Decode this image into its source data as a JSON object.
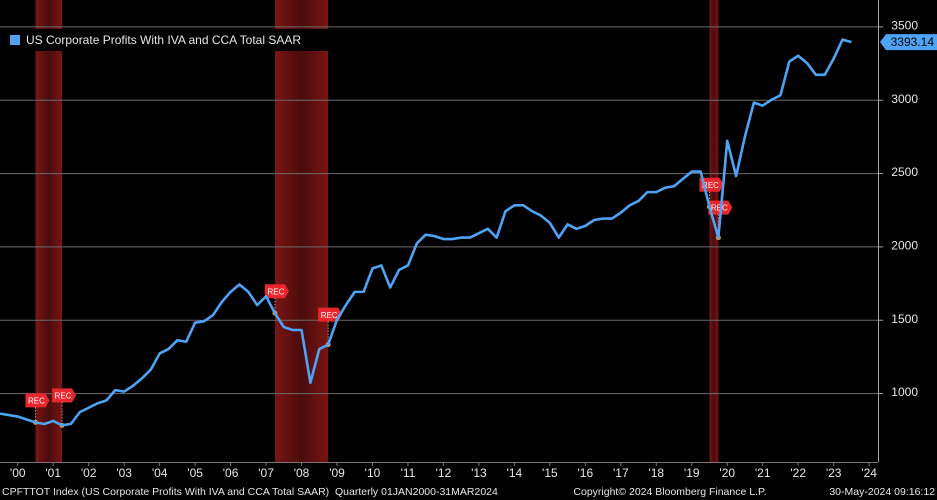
{
  "chart_data": {
    "type": "line",
    "series": [
      {
        "name": "US Corporate Profits With IVA and CCA Total SAAR",
        "color": "#4da3f5",
        "last_label": "3393.14",
        "values": [
          860,
          850,
          840,
          820,
          800,
          789,
          810,
          780,
          790,
          870,
          900,
          930,
          950,
          1020,
          1010,
          1050,
          1100,
          1160,
          1270,
          1300,
          1360,
          1350,
          1480,
          1490,
          1530,
          1620,
          1690,
          1740,
          1690,
          1600,
          1660,
          1544,
          1450,
          1430,
          1430,
          1070,
          1300,
          1330,
          1500,
          1600,
          1690,
          1690,
          1850,
          1870,
          1720,
          1840,
          1870,
          2020,
          2080,
          2070,
          2050,
          2050,
          2060,
          2060,
          2090,
          2120,
          2060,
          2240,
          2280,
          2280,
          2240,
          2210,
          2160,
          2060,
          2150,
          2120,
          2140,
          2180,
          2190,
          2190,
          2230,
          2280,
          2310,
          2370,
          2370,
          2400,
          2410,
          2460,
          2510,
          2510,
          2270,
          2060,
          2720,
          2480,
          2750,
          2980,
          2960,
          3000,
          3030,
          3260,
          3300,
          3250,
          3170,
          3170,
          3280,
          3410,
          3393.14
        ]
      }
    ],
    "x": [
      2000,
      2000.25,
      2000.5,
      2000.75,
      2001,
      2001.25,
      2001.5,
      2001.75,
      2002,
      2002.25,
      2002.5,
      2002.75,
      2003,
      2003.25,
      2003.5,
      2003.75,
      2004,
      2004.25,
      2004.5,
      2004.75,
      2005,
      2005.25,
      2005.5,
      2005.75,
      2006,
      2006.25,
      2006.5,
      2006.75,
      2007,
      2007.25,
      2007.5,
      2007.75,
      2008,
      2008.25,
      2008.5,
      2008.75,
      2009,
      2009.25,
      2009.5,
      2009.75,
      2010,
      2010.25,
      2010.5,
      2010.75,
      2011,
      2011.25,
      2011.5,
      2011.75,
      2012,
      2012.25,
      2012.5,
      2012.75,
      2013,
      2013.25,
      2013.5,
      2013.75,
      2014,
      2014.25,
      2014.5,
      2014.75,
      2015,
      2015.25,
      2015.5,
      2015.75,
      2016,
      2016.25,
      2016.5,
      2016.75,
      2017,
      2017.25,
      2017.5,
      2017.75,
      2018,
      2018.25,
      2018.5,
      2018.75,
      2019,
      2019.25,
      2019.5,
      2019.75,
      2020,
      2020.25,
      2020.5,
      2020.75,
      2021,
      2021.25,
      2021.5,
      2021.75,
      2022,
      2022.25,
      2022.5,
      2022.75,
      2023,
      2023.25,
      2023.5,
      2023.75,
      2024
    ],
    "xlim": [
      2000,
      2024.75
    ],
    "xticks": [
      {
        "value": 2000.5,
        "label": "'00"
      },
      {
        "value": 2001.5,
        "label": "'01"
      },
      {
        "value": 2002.5,
        "label": "'02"
      },
      {
        "value": 2003.5,
        "label": "'03"
      },
      {
        "value": 2004.5,
        "label": "'04"
      },
      {
        "value": 2005.5,
        "label": "'05"
      },
      {
        "value": 2006.5,
        "label": "'06"
      },
      {
        "value": 2007.5,
        "label": "'07"
      },
      {
        "value": 2008.5,
        "label": "'08"
      },
      {
        "value": 2009.5,
        "label": "'09"
      },
      {
        "value": 2010.5,
        "label": "'10"
      },
      {
        "value": 2011.5,
        "label": "'11"
      },
      {
        "value": 2012.5,
        "label": "'12"
      },
      {
        "value": 2013.5,
        "label": "'13"
      },
      {
        "value": 2014.5,
        "label": "'14"
      },
      {
        "value": 2015.5,
        "label": "'15"
      },
      {
        "value": 2016.5,
        "label": "'16"
      },
      {
        "value": 2017.5,
        "label": "'17"
      },
      {
        "value": 2018.5,
        "label": "'18"
      },
      {
        "value": 2019.5,
        "label": "'19"
      },
      {
        "value": 2020.5,
        "label": "'20"
      },
      {
        "value": 2021.5,
        "label": "'21"
      },
      {
        "value": 2022.5,
        "label": "'22"
      },
      {
        "value": 2023.5,
        "label": "'23"
      },
      {
        "value": 2024.5,
        "label": "'24"
      }
    ],
    "ylim": [
      530,
      3680
    ],
    "yticks": [
      1000,
      1500,
      2000,
      2500,
      3000,
      3500
    ],
    "grid": true,
    "legend": "top-left",
    "recessions": [
      {
        "start": 2001,
        "end": 2001.75,
        "start_label": "REC",
        "end_label": "REC"
      },
      {
        "start": 2007.75,
        "end": 2009.25,
        "start_label": "REC",
        "end_label": "REC"
      },
      {
        "start": 2020,
        "end": 2020.25,
        "start_label": "REC",
        "end_label": "REC"
      }
    ],
    "footer": {
      "left": "CPFTTOT Index (US Corporate Profits With IVA and CCA Total SAAR)  Quarterly 01JAN2000-31MAR2024",
      "center": "Copyright© 2024 Bloomberg Finance L.P.",
      "right": "30-May-2024 09:16:12"
    }
  }
}
